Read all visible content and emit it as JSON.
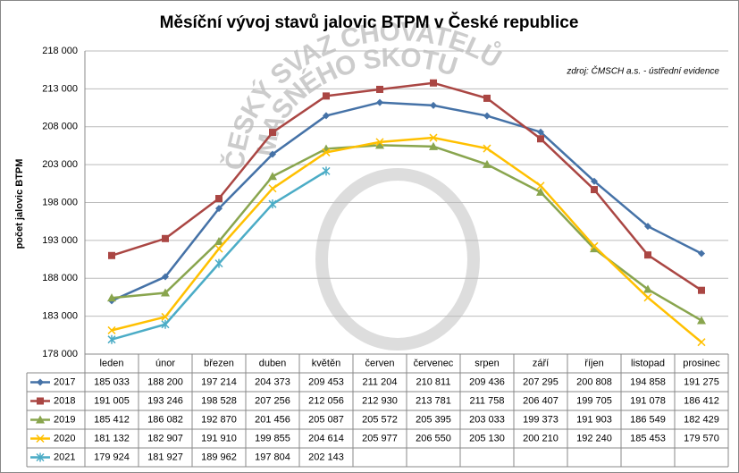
{
  "chart_data": {
    "type": "line",
    "title": "Měsíční vývoj stavů jalovic BTPM v České republice",
    "y_label": "počet jalovic BTPM",
    "annotation": "zdroj: ČMSCH a.s. - ústřední evidence",
    "watermark": [
      "ČESKÝ SVAZ CHOVATELŮ",
      "MASNÉHO SKOTU"
    ],
    "categories": [
      "leden",
      "únor",
      "březen",
      "duben",
      "květěn",
      "červen",
      "červenec",
      "srpen",
      "září",
      "říjen",
      "listopad",
      "prosinec"
    ],
    "ylim": [
      178000,
      218000
    ],
    "yticks": [
      {
        "value": 178000,
        "label": "178 000"
      },
      {
        "value": 183000,
        "label": "183 000"
      },
      {
        "value": 188000,
        "label": "188 000"
      },
      {
        "value": 193000,
        "label": "193 000"
      },
      {
        "value": 198000,
        "label": "198 000"
      },
      {
        "value": 203000,
        "label": "203 000"
      },
      {
        "value": 208000,
        "label": "208 000"
      },
      {
        "value": 213000,
        "label": "213 000"
      },
      {
        "value": 218000,
        "label": "218 000"
      }
    ],
    "grid": true,
    "series": [
      {
        "name": "2017",
        "color": "#4572a7",
        "marker": "diamond",
        "values": [
          185033,
          188200,
          197214,
          204373,
          209453,
          211204,
          210811,
          209436,
          207295,
          200808,
          194858,
          191275
        ],
        "value_labels": [
          "185 033",
          "188 200",
          "197 214",
          "204 373",
          "209 453",
          "211 204",
          "210 811",
          "209 436",
          "207 295",
          "200 808",
          "194 858",
          "191 275"
        ]
      },
      {
        "name": "2018",
        "color": "#aa4643",
        "marker": "square",
        "values": [
          191005,
          193246,
          198528,
          207256,
          212056,
          212930,
          213781,
          211758,
          206407,
          199705,
          191078,
          186412
        ],
        "value_labels": [
          "191 005",
          "193 246",
          "198 528",
          "207 256",
          "212 056",
          "212 930",
          "213 781",
          "211 758",
          "206 407",
          "199 705",
          "191 078",
          "186 412"
        ]
      },
      {
        "name": "2019",
        "color": "#89a54e",
        "marker": "triangle",
        "values": [
          185412,
          186082,
          192870,
          201456,
          205087,
          205572,
          205395,
          203033,
          199373,
          191903,
          186549,
          182429
        ],
        "value_labels": [
          "185 412",
          "186 082",
          "192 870",
          "201 456",
          "205 087",
          "205 572",
          "205 395",
          "203 033",
          "199 373",
          "191 903",
          "186 549",
          "182 429"
        ]
      },
      {
        "name": "2020",
        "color": "#ffc000",
        "marker": "x",
        "values": [
          181132,
          182907,
          191910,
          199855,
          204614,
          205977,
          206550,
          205130,
          200210,
          192240,
          185453,
          179570
        ],
        "value_labels": [
          "181 132",
          "182 907",
          "191 910",
          "199 855",
          "204 614",
          "205 977",
          "206 550",
          "205 130",
          "200 210",
          "192 240",
          "185 453",
          "179 570"
        ]
      },
      {
        "name": "2021",
        "color": "#4bacc6",
        "marker": "star",
        "values": [
          179924,
          181927,
          189962,
          197804,
          202143,
          null,
          null,
          null,
          null,
          null,
          null,
          null
        ],
        "value_labels": [
          "179 924",
          "181 927",
          "189 962",
          "197 804",
          "202 143",
          null,
          null,
          null,
          null,
          null,
          null,
          null
        ]
      }
    ]
  }
}
